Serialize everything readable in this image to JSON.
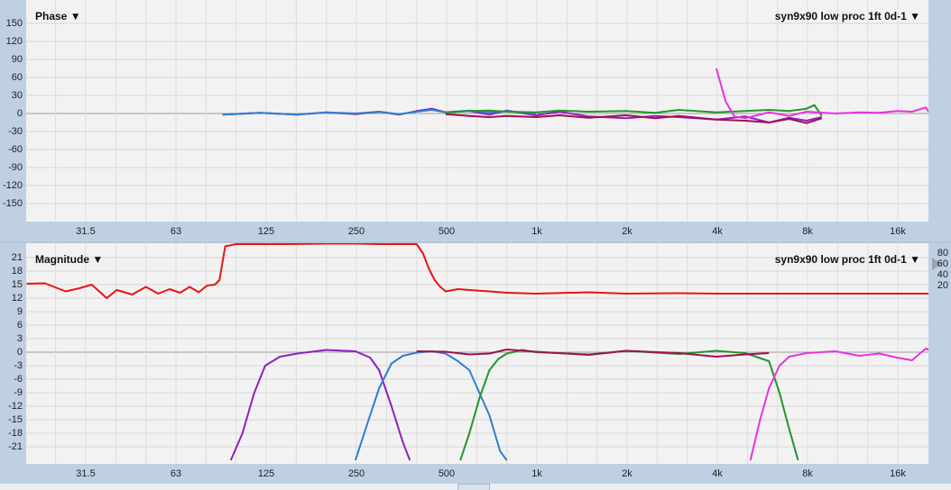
{
  "phase": {
    "title": "Phase ▼",
    "measurement": "syn9x90 low proc 1ft 0d-1 ▼",
    "yticks": [
      "150",
      "120",
      "90",
      "60",
      "30",
      "0",
      "-30",
      "-60",
      "-90",
      "-120",
      "-150"
    ]
  },
  "magnitude": {
    "title": "Magnitude ▼",
    "measurement": "syn9x90 low proc 1ft 0d-1 ▼",
    "yticks": [
      "21",
      "18",
      "15",
      "12",
      "9",
      "6",
      "3",
      "0",
      "-3",
      "-6",
      "-9",
      "-12",
      "-15",
      "-18",
      "-21"
    ],
    "right_ticks": [
      "80",
      "60",
      "40",
      "20"
    ]
  },
  "xticks": [
    "31.5",
    "63",
    "125",
    "250",
    "500",
    "1k",
    "2k",
    "4k",
    "8k",
    "16k"
  ],
  "colors": {
    "red": "#ee1111",
    "purple": "#8f1fc0",
    "blue": "#2f7fcc",
    "green": "#22952c",
    "magenta": "#e633e0",
    "maroon": "#a01050"
  },
  "chart_data": [
    {
      "type": "line",
      "title": "Phase",
      "xscale": "log",
      "xlim": [
        20,
        22000
      ],
      "ylim": [
        -180,
        180
      ],
      "series": [
        {
          "color": "purple",
          "x": [
            90,
            120,
            160,
            200,
            250,
            300,
            350,
            400,
            450,
            500,
            600,
            700,
            800,
            1000,
            1200,
            1500,
            2000,
            2500,
            3000,
            4000,
            5000,
            6000,
            7000,
            8000,
            9000
          ],
          "y": [
            -2,
            1,
            -2,
            2,
            -1,
            3,
            -2,
            4,
            8,
            2,
            4,
            -2,
            5,
            -3,
            3,
            -5,
            -8,
            -4,
            -6,
            -10,
            -5,
            -15,
            -7,
            -12,
            -6
          ]
        },
        {
          "color": "blue",
          "x": [
            90,
            120,
            160,
            200,
            250,
            300,
            350,
            400,
            450,
            500,
            600,
            700,
            800,
            1000
          ],
          "y": [
            -2,
            1,
            -2,
            2,
            0,
            3,
            -1,
            3,
            6,
            2,
            5,
            2,
            4,
            0
          ]
        },
        {
          "color": "green",
          "x": [
            500,
            600,
            700,
            800,
            1000,
            1200,
            1500,
            2000,
            2500,
            3000,
            4000,
            5000,
            6000,
            7000,
            8000,
            8500,
            9000
          ],
          "y": [
            2,
            4,
            5,
            3,
            2,
            5,
            3,
            4,
            1,
            6,
            2,
            4,
            6,
            4,
            8,
            14,
            -4
          ]
        },
        {
          "color": "maroon",
          "x": [
            500,
            600,
            700,
            800,
            1000,
            1200,
            1500,
            2000,
            2500,
            3000,
            4000,
            5000,
            6000,
            7000,
            8000,
            9000
          ],
          "y": [
            -1,
            -4,
            -6,
            -4,
            -6,
            -3,
            -7,
            -3,
            -8,
            -4,
            -10,
            -12,
            -15,
            -9,
            -16,
            -8
          ]
        },
        {
          "color": "magenta",
          "x": [
            4000,
            4300,
            4600,
            5000,
            6000,
            7000,
            8000,
            10000,
            12000,
            14000,
            16000,
            18000,
            20000,
            22000
          ],
          "y": [
            75,
            20,
            -5,
            -8,
            2,
            -4,
            3,
            0,
            2,
            1,
            4,
            3,
            10,
            -20
          ]
        }
      ]
    },
    {
      "type": "line",
      "title": "Magnitude",
      "xscale": "log",
      "xlim": [
        20,
        22000
      ],
      "ylim": [
        -24,
        24
      ],
      "series": [
        {
          "color": "red",
          "x": [
            20,
            23,
            27,
            30,
            33,
            37,
            40,
            45,
            50,
            55,
            60,
            65,
            70,
            75,
            80,
            85,
            88,
            92,
            100,
            120,
            150,
            200,
            250,
            300,
            350,
            400,
            420,
            440,
            460,
            480,
            500,
            550,
            600,
            700,
            800,
            1000,
            1500,
            2000,
            3000,
            4000,
            6000,
            8000,
            12000,
            16000,
            22000
          ],
          "y": [
            15.2,
            15.3,
            13.5,
            14.2,
            15.0,
            12.0,
            13.8,
            12.8,
            14.5,
            13.0,
            14.0,
            13.2,
            14.5,
            13.3,
            14.8,
            15.0,
            16.0,
            23.5,
            24.0,
            24.0,
            24.0,
            24.1,
            24.1,
            24.0,
            24.0,
            24.0,
            22.0,
            18.5,
            16.0,
            14.5,
            13.5,
            14.0,
            13.8,
            13.5,
            13.2,
            13.0,
            13.3,
            13.0,
            13.1,
            13.0,
            13.0,
            13.0,
            13.0,
            13.0,
            13.0
          ]
        },
        {
          "color": "purple",
          "x": [
            96,
            105,
            115,
            125,
            140,
            160,
            200,
            250,
            280,
            300,
            330,
            360,
            380
          ],
          "y": [
            -24,
            -18,
            -9,
            -3,
            -1,
            -0.3,
            0.5,
            0.2,
            -1.2,
            -4,
            -12,
            -20,
            -24
          ]
        },
        {
          "color": "blue",
          "x": [
            250,
            280,
            300,
            330,
            360,
            400,
            450,
            500,
            550,
            600,
            700,
            760,
            800
          ],
          "y": [
            -24,
            -14,
            -8,
            -2.5,
            -0.8,
            -0.1,
            0.2,
            -0.3,
            -2,
            -4,
            -14,
            -22,
            -24
          ]
        },
        {
          "color": "green",
          "x": [
            560,
            600,
            650,
            700,
            750,
            800,
            900,
            1000,
            1500,
            2000,
            3000,
            4000,
            5000,
            6000,
            6500,
            7000,
            7500
          ],
          "y": [
            -24,
            -18,
            -10,
            -4,
            -1.5,
            -0.3,
            0.5,
            0,
            -0.5,
            0.3,
            -0.4,
            0.3,
            -0.2,
            -2,
            -9,
            -17,
            -24
          ]
        },
        {
          "color": "maroon",
          "x": [
            400,
            500,
            600,
            700,
            800,
            1000,
            1500,
            2000,
            3000,
            4000,
            5000,
            6000
          ],
          "y": [
            0.2,
            0.1,
            -0.5,
            -0.3,
            0.6,
            0.1,
            -0.6,
            0.3,
            -0.2,
            -1.0,
            -0.5,
            -0.2
          ]
        },
        {
          "color": "magenta",
          "x": [
            5200,
            5600,
            6000,
            6500,
            7000,
            8000,
            10000,
            12000,
            14000,
            16000,
            18000,
            20000,
            21000,
            22000
          ],
          "y": [
            -24,
            -15,
            -8,
            -3,
            -1,
            -0.2,
            0.2,
            -0.8,
            -0.3,
            -1.2,
            -1.8,
            0.8,
            0.2,
            -1.5
          ]
        }
      ]
    }
  ]
}
